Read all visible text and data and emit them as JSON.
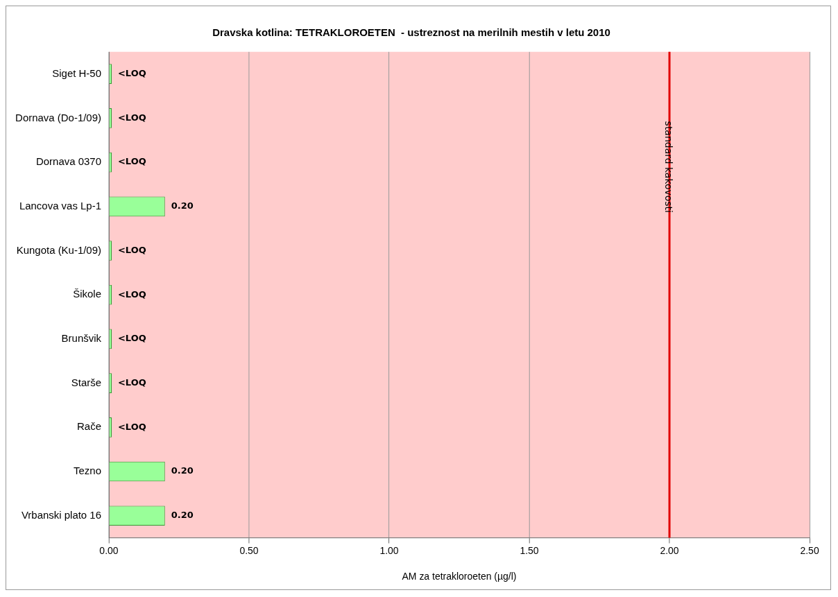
{
  "chart_data": {
    "type": "bar",
    "orientation": "horizontal",
    "title": "Dravska kotlina: TETRAKLOROETEN  - ustreznost na merilnih mestih v letu 2010",
    "xlabel": "AM za tetrakloroeten (µg/l)",
    "categories": [
      "Siget H-50",
      "Dornava (Do-1/09)",
      "Dornava 0370",
      "Lancova vas Lp-1",
      "Kungota (Ku-1/09)",
      "Šikole",
      "Brunšvik",
      "Starše",
      "Rače",
      "Tezno",
      "Vrbanski plato 16"
    ],
    "values": [
      0.01,
      0.01,
      0.01,
      0.2,
      0.01,
      0.01,
      0.01,
      0.01,
      0.01,
      0.2,
      0.2
    ],
    "value_labels": [
      "<LOQ",
      "<LOQ",
      "<LOQ",
      "0.20",
      "<LOQ",
      "<LOQ",
      "<LOQ",
      "<LOQ",
      "<LOQ",
      "0.20",
      "0.20"
    ],
    "color": "#99ff99",
    "xlim": [
      0,
      2.5
    ],
    "xticks": [
      {
        "value": 0,
        "label": "0.00"
      },
      {
        "value": 0.5,
        "label": "0.50"
      },
      {
        "value": 1,
        "label": "1.00"
      },
      {
        "value": 1.5,
        "label": "1.50"
      },
      {
        "value": 2,
        "label": "2.00"
      },
      {
        "value": 2.5,
        "label": "2.50"
      }
    ],
    "ref_lines": [
      {
        "axis": "x",
        "value": 2,
        "label": "standard kakovosti",
        "color": "#e00000"
      }
    ],
    "grid": "x",
    "legend": false
  }
}
